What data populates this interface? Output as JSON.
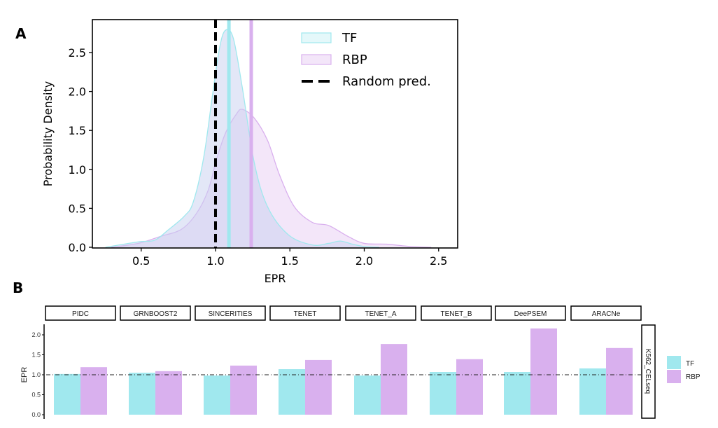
{
  "colors": {
    "TF": "#a0e8ee",
    "RBP": "#d9b0ee",
    "TF_fill": "#e4f8fa",
    "RBP_fill": "#f3e6f9",
    "overlap_fill": "#e2e4f5"
  },
  "chart_data": [
    {
      "panel_label": "A",
      "type": "area",
      "xlabel": "EPR",
      "ylabel": "Probability Density",
      "xlim": [
        0.15,
        2.62
      ],
      "ylim": [
        0,
        2.9
      ],
      "xticks": [
        "0.5",
        "1.0",
        "1.5",
        "2.0",
        "2.5"
      ],
      "yticks": [
        "0.0",
        "0.5",
        "1.0",
        "1.5",
        "2.0",
        "2.5"
      ],
      "grid": false,
      "legend_position": "top-right",
      "legend": [
        "TF",
        "RBP",
        "Random pred."
      ],
      "series": [
        {
          "name": "TF",
          "mean": 1.09,
          "x": [
            0.26,
            0.48,
            0.59,
            0.68,
            0.79,
            0.85,
            0.92,
            0.98,
            1.03,
            1.07,
            1.12,
            1.18,
            1.26,
            1.35,
            1.49,
            1.65,
            1.76,
            1.84,
            1.92,
            2.0,
            2.1
          ],
          "y": [
            0,
            0.07,
            0.09,
            0.22,
            0.4,
            0.58,
            1.15,
            1.96,
            2.59,
            2.79,
            2.68,
            2.05,
            1.09,
            0.52,
            0.16,
            0.03,
            0.05,
            0.08,
            0.04,
            0.01,
            0
          ]
        },
        {
          "name": "RBP",
          "mean": 1.24,
          "x": [
            0.3,
            0.48,
            0.63,
            0.77,
            0.87,
            0.95,
            1.01,
            1.07,
            1.14,
            1.18,
            1.26,
            1.35,
            1.43,
            1.53,
            1.65,
            1.76,
            1.89,
            2.0,
            2.15,
            2.31,
            2.45
          ],
          "y": [
            0,
            0.05,
            0.14,
            0.23,
            0.43,
            0.73,
            1.15,
            1.48,
            1.71,
            1.77,
            1.66,
            1.37,
            0.93,
            0.52,
            0.32,
            0.28,
            0.14,
            0.05,
            0.04,
            0.01,
            0
          ]
        }
      ],
      "reference_line": {
        "name": "Random pred.",
        "x": 1.0
      }
    },
    {
      "panel_label": "B",
      "type": "bar",
      "ylabel": "EPR",
      "ylim": [
        0,
        2.25
      ],
      "yticks": [
        "0.0",
        "0.5",
        "1.0",
        "1.5",
        "2.0"
      ],
      "facet_row_label": "K562_CELseq",
      "categories": [
        "PIDC",
        "GRNBOOST2",
        "SINCERITIES",
        "TENET",
        "TENET_A",
        "TENET_B",
        "DeePSEM",
        "ARACNe"
      ],
      "series": [
        {
          "name": "TF",
          "values": [
            1.02,
            1.05,
            0.98,
            1.14,
            0.98,
            1.07,
            1.07,
            1.16
          ]
        },
        {
          "name": "RBP",
          "values": [
            1.19,
            1.09,
            1.23,
            1.37,
            1.77,
            1.39,
            2.16,
            1.67
          ]
        }
      ],
      "reference_line": {
        "y": 1.0
      },
      "legend": [
        "TF",
        "RBP"
      ],
      "legend_position": "right"
    }
  ]
}
